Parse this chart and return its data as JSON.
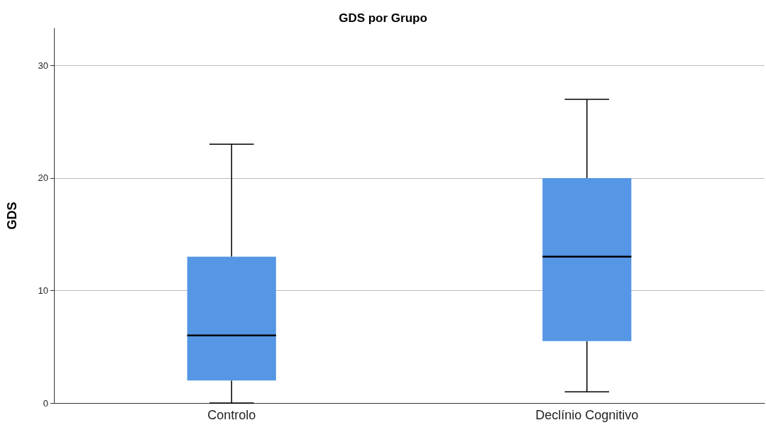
{
  "chart_data": {
    "type": "box",
    "title": "GDS por Grupo",
    "ylabel": "GDS",
    "categories": [
      "Controlo",
      "Declínio Cognitivo"
    ],
    "boxes": [
      {
        "low": 0,
        "q1": 2,
        "median": 6,
        "q3": 13,
        "high": 23
      },
      {
        "low": 1,
        "q1": 5.5,
        "median": 13,
        "q3": 20,
        "high": 27
      }
    ],
    "color": "#5596e5",
    "ylim": [
      0,
      33.3
    ],
    "yticks": [
      0,
      10,
      20,
      30
    ],
    "grid": "y"
  }
}
